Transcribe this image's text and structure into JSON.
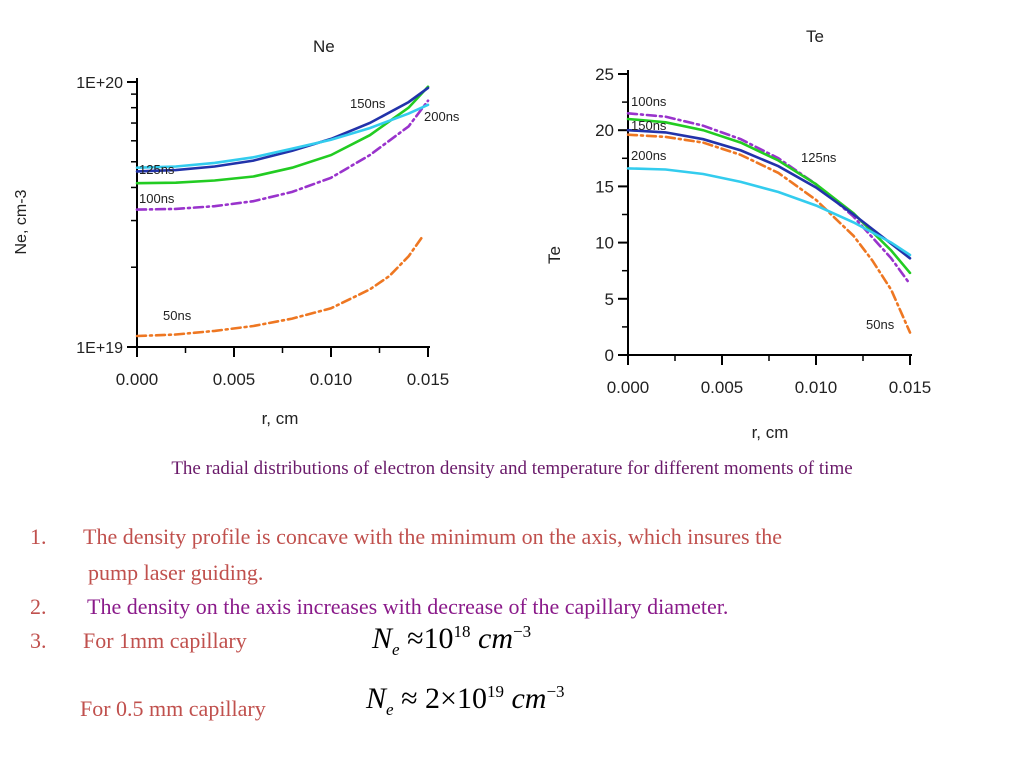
{
  "caption": "The radial distributions of electron density and temperature for different moments of time",
  "items": [
    {
      "num": "1.",
      "text_line1": "The density profile is concave with the minimum on the axis, which insures the",
      "text_line2": "pump laser guiding.",
      "color": "#c0504d"
    },
    {
      "num": "2.",
      "text": "The density on the axis increases with decrease of the capillary diameter.",
      "color": "#8a1a8a"
    },
    {
      "num": "3.",
      "text": "For 1mm capillary",
      "color": "#c0504d"
    }
  ],
  "sub_item": {
    "text": "For 0.5 mm capillary",
    "color": "#c0504d"
  },
  "formula1": {
    "symbol": "N",
    "sub": "e",
    "approx": "≈",
    "base": "10",
    "exp": "18",
    "unit": "cm",
    "unit_exp": "−3"
  },
  "formula2": {
    "symbol": "N",
    "sub": "e",
    "approx": "≈",
    "coef": "2×",
    "base": "10",
    "exp": "19",
    "unit": "cm",
    "unit_exp": "−3"
  },
  "chart_data": [
    {
      "type": "line",
      "title": "Ne",
      "xlabel": "r, cm",
      "ylabel": "Ne, cm-3",
      "y_scale": "log",
      "xlim": [
        0.0,
        0.015
      ],
      "ylim": [
        1e+19,
        1e+20
      ],
      "x_ticks": [
        "0.000",
        "0.005",
        "0.010",
        "0.015"
      ],
      "y_ticks": [
        "1E+19",
        "1E+20"
      ],
      "series": [
        {
          "name": "50ns",
          "color": "#ee7722",
          "style": "dashdot",
          "x": [
            0.0,
            0.002,
            0.004,
            0.006,
            0.008,
            0.01,
            0.012,
            0.013,
            0.014,
            0.0147
          ],
          "y": [
            1.1e+19,
            1.115e+19,
            1.15e+19,
            1.2e+19,
            1.28e+19,
            1.4e+19,
            1.65e+19,
            1.85e+19,
            2.2e+19,
            2.6e+19
          ]
        },
        {
          "name": "100ns",
          "color": "#9933cc",
          "style": "dashdot",
          "x": [
            0.0,
            0.002,
            0.004,
            0.006,
            0.008,
            0.01,
            0.012,
            0.014,
            0.015
          ],
          "y": [
            3.3e+19,
            3.32e+19,
            3.4e+19,
            3.55e+19,
            3.85e+19,
            4.35e+19,
            5.3e+19,
            6.8e+19,
            8.5e+19
          ]
        },
        {
          "name": "125ns",
          "color": "#22cc22",
          "style": "solid",
          "x": [
            0.0,
            0.002,
            0.004,
            0.006,
            0.008,
            0.01,
            0.012,
            0.014,
            0.015
          ],
          "y": [
            4.15e+19,
            4.17e+19,
            4.25e+19,
            4.4e+19,
            4.75e+19,
            5.3e+19,
            6.3e+19,
            8e+19,
            9.6e+19
          ]
        },
        {
          "name": "150ns",
          "color": "#2233aa",
          "style": "solid",
          "x": [
            0.0,
            0.002,
            0.004,
            0.006,
            0.008,
            0.01,
            0.012,
            0.014,
            0.015
          ],
          "y": [
            4.6e+19,
            4.65e+19,
            4.8e+19,
            5.05e+19,
            5.5e+19,
            6.1e+19,
            7e+19,
            8.4e+19,
            9.5e+19
          ]
        },
        {
          "name": "200ns",
          "color": "#33ccee",
          "style": "solid",
          "x": [
            0.0,
            0.002,
            0.004,
            0.006,
            0.008,
            0.01,
            0.012,
            0.014,
            0.015
          ],
          "y": [
            4.75e+19,
            4.8e+19,
            4.95e+19,
            5.2e+19,
            5.6e+19,
            6.05e+19,
            6.7e+19,
            7.6e+19,
            8.2e+19
          ]
        }
      ]
    },
    {
      "type": "line",
      "title": "Te",
      "xlabel": "r, cm",
      "ylabel": "Te",
      "xlim": [
        0.0,
        0.015
      ],
      "ylim": [
        0,
        25
      ],
      "x_ticks": [
        "0.000",
        "0.005",
        "0.010",
        "0.015"
      ],
      "y_ticks": [
        "0",
        "5",
        "10",
        "15",
        "20",
        "25"
      ],
      "series": [
        {
          "name": "50ns",
          "color": "#ee7722",
          "style": "dashdot",
          "x": [
            0.0,
            0.002,
            0.004,
            0.006,
            0.008,
            0.01,
            0.012,
            0.013,
            0.014,
            0.015
          ],
          "y": [
            19.6,
            19.4,
            18.9,
            17.8,
            16.2,
            13.8,
            10.6,
            8.4,
            5.8,
            2.0
          ]
        },
        {
          "name": "100ns",
          "color": "#9933cc",
          "style": "dashdot",
          "x": [
            0.0,
            0.002,
            0.004,
            0.006,
            0.008,
            0.01,
            0.012,
            0.014,
            0.015
          ],
          "y": [
            21.5,
            21.2,
            20.4,
            19.2,
            17.5,
            15.2,
            12.3,
            8.6,
            6.3
          ]
        },
        {
          "name": "125ns",
          "color": "#22cc22",
          "style": "solid",
          "x": [
            0.0,
            0.002,
            0.004,
            0.006,
            0.008,
            0.01,
            0.012,
            0.014,
            0.015
          ],
          "y": [
            21.0,
            20.7,
            20.0,
            18.9,
            17.3,
            15.2,
            12.6,
            9.3,
            7.3
          ]
        },
        {
          "name": "150ns",
          "color": "#2233aa",
          "style": "solid",
          "x": [
            0.0,
            0.002,
            0.004,
            0.006,
            0.008,
            0.01,
            0.012,
            0.014,
            0.015
          ],
          "y": [
            20.0,
            19.8,
            19.2,
            18.2,
            16.8,
            14.9,
            12.5,
            9.9,
            8.6
          ]
        },
        {
          "name": "200ns",
          "color": "#33ccee",
          "style": "solid",
          "x": [
            0.0,
            0.002,
            0.004,
            0.006,
            0.008,
            0.01,
            0.012,
            0.014,
            0.015
          ],
          "y": [
            16.6,
            16.5,
            16.1,
            15.4,
            14.5,
            13.3,
            11.8,
            10.0,
            8.9
          ]
        }
      ]
    }
  ]
}
